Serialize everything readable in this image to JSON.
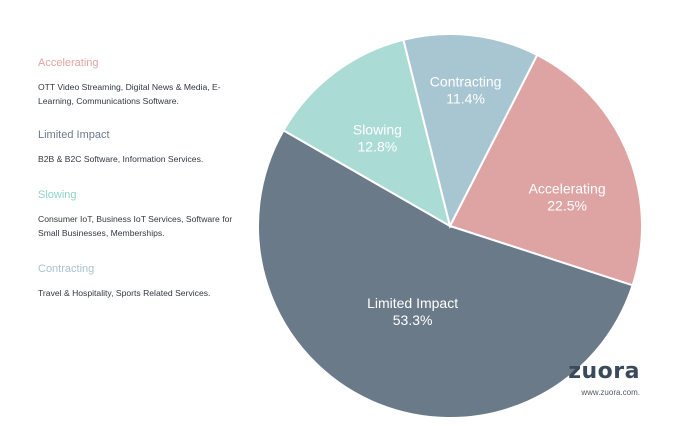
{
  "legend": [
    {
      "title": "Accelerating",
      "color": "#e3a3a2",
      "description": "OTT Video Streaming, Digital News & Media, E-Learning, Communications Software."
    },
    {
      "title": "Limited Impact",
      "color": "#6a7a8a",
      "description": "B2B & B2C Software, Information Services."
    },
    {
      "title": "Slowing",
      "color": "#8ed3c9",
      "description": "Consumer IoT, Business IoT Services, Software for Small Businesses, Memberships."
    },
    {
      "title": "Contracting",
      "color": "#a9c3d1",
      "description": "Travel & Hospitality, Sports Related Services."
    }
  ],
  "chart_data": {
    "type": "pie",
    "title": "",
    "slices": [
      {
        "label": "Accelerating",
        "value": 22.5,
        "value_label": "22.5%",
        "color": "#dea3a3"
      },
      {
        "label": "Limited Impact",
        "value": 53.3,
        "value_label": "53.3%",
        "color": "#6a7a89"
      },
      {
        "label": "Slowing",
        "value": 12.8,
        "value_label": "12.8%",
        "color": "#aadcd5"
      },
      {
        "label": "Contracting",
        "value": 11.4,
        "value_label": "11.4%",
        "color": "#a8c5d2"
      }
    ]
  },
  "brand": {
    "logo": "zuora",
    "url": "www.zuora.com."
  }
}
